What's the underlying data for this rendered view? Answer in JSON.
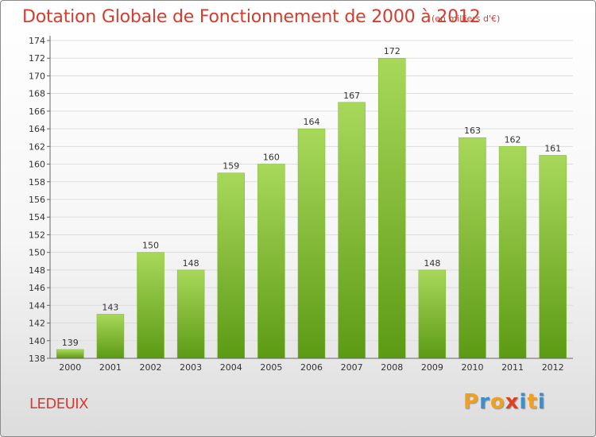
{
  "header": {
    "title": "Dotation Globale de Fonctionnement de 2000 à 2012",
    "unit_note": "(en milliers d'€)"
  },
  "footer": {
    "commune": "LEDEUIX",
    "logo_text": "Proxiti",
    "logo_colors": [
      "#f0a020",
      "#3a8fd0",
      "#f0a020",
      "#e04020",
      "#3a8fd0",
      "#f0a020",
      "#3a8fd0"
    ]
  },
  "chart_data": {
    "type": "bar",
    "categories": [
      "2000",
      "2001",
      "2002",
      "2003",
      "2004",
      "2005",
      "2006",
      "2007",
      "2008",
      "2009",
      "2010",
      "2011",
      "2012"
    ],
    "values": [
      139,
      143,
      150,
      148,
      159,
      160,
      164,
      167,
      172,
      148,
      163,
      162,
      161
    ],
    "data_labels": [
      "139",
      "143",
      "150",
      "148",
      "159",
      "160",
      "164",
      "167",
      "172",
      "148",
      "163",
      "162",
      "161"
    ],
    "yticks": [
      "138",
      "140",
      "142",
      "144",
      "146",
      "148",
      "150",
      "152",
      "154",
      "156",
      "158",
      "160",
      "162",
      "164",
      "166",
      "168",
      "170",
      "172",
      "174"
    ],
    "ylim": [
      138,
      174
    ],
    "grid": true,
    "bar_color_top": "#a8d85a",
    "bar_color_bottom": "#5c9a14"
  }
}
